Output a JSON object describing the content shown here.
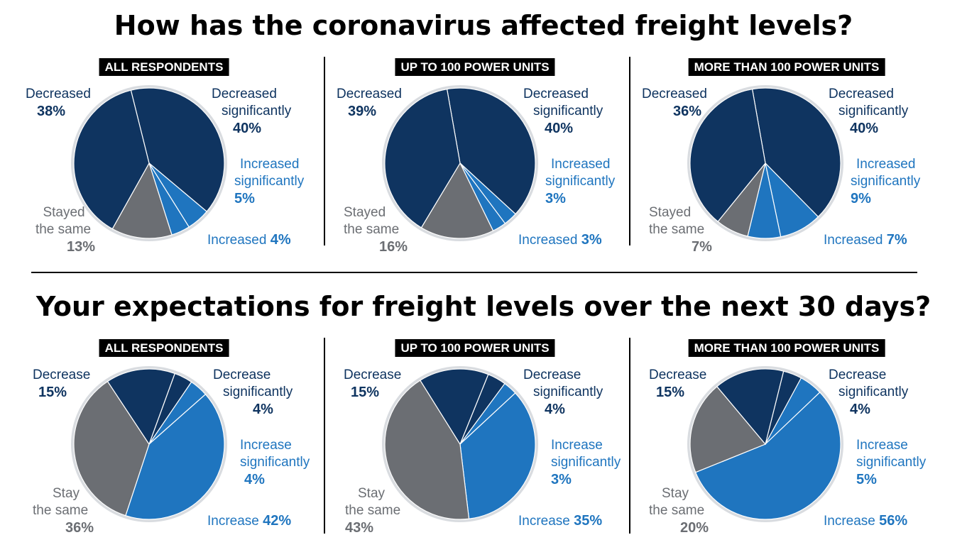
{
  "titles": {
    "top": "How has the coronavirus affected freight levels?",
    "bottom": "Your expectations for freight levels over the next 30 days?"
  },
  "colors": {
    "dark": "#0f3460",
    "blue": "#1f75bf",
    "gray": "#6b6e73"
  },
  "chart_data": [
    {
      "type": "pie",
      "title": "ALL RESPONDENTS",
      "slices": [
        {
          "label": "Decreased significantly",
          "value": 40,
          "color": "#0f3460"
        },
        {
          "label": "Increased significantly",
          "value": 5,
          "color": "#1f75bf"
        },
        {
          "label": "Increased",
          "value": 4,
          "color": "#1f75bf"
        },
        {
          "label": "Stayed the same",
          "value": 13,
          "color": "#6b6e73"
        },
        {
          "label": "Decreased",
          "value": 38,
          "color": "#0f3460"
        }
      ]
    },
    {
      "type": "pie",
      "title": "UP TO 100 POWER UNITS",
      "slices": [
        {
          "label": "Decreased significantly",
          "value": 40,
          "color": "#0f3460"
        },
        {
          "label": "Increased significantly",
          "value": 3,
          "color": "#1f75bf"
        },
        {
          "label": "Increased",
          "value": 3,
          "color": "#1f75bf"
        },
        {
          "label": "Stayed the same",
          "value": 16,
          "color": "#6b6e73"
        },
        {
          "label": "Decreased",
          "value": 39,
          "color": "#0f3460"
        }
      ]
    },
    {
      "type": "pie",
      "title": "MORE THAN 100 POWER UNITS",
      "slices": [
        {
          "label": "Decreased significantly",
          "value": 40,
          "color": "#0f3460"
        },
        {
          "label": "Increased significantly",
          "value": 9,
          "color": "#1f75bf"
        },
        {
          "label": "Increased",
          "value": 7,
          "color": "#1f75bf"
        },
        {
          "label": "Stayed the same",
          "value": 7,
          "color": "#6b6e73"
        },
        {
          "label": "Decreased",
          "value": 36,
          "color": "#0f3460"
        }
      ]
    },
    {
      "type": "pie",
      "title": "ALL RESPONDENTS",
      "slices": [
        {
          "label": "Decrease significantly",
          "value": 4,
          "color": "#0f3460"
        },
        {
          "label": "Increase significantly",
          "value": 4,
          "color": "#1f75bf"
        },
        {
          "label": "Increase",
          "value": 42,
          "color": "#1f75bf"
        },
        {
          "label": "Stay the same",
          "value": 36,
          "color": "#6b6e73"
        },
        {
          "label": "Decrease",
          "value": 15,
          "color": "#0f3460"
        }
      ]
    },
    {
      "type": "pie",
      "title": "UP TO 100 POWER UNITS",
      "slices": [
        {
          "label": "Decrease significantly",
          "value": 4,
          "color": "#0f3460"
        },
        {
          "label": "Increase significantly",
          "value": 3,
          "color": "#1f75bf"
        },
        {
          "label": "Increase",
          "value": 35,
          "color": "#1f75bf"
        },
        {
          "label": "Stay the same",
          "value": 43,
          "color": "#6b6e73"
        },
        {
          "label": "Decrease",
          "value": 15,
          "color": "#0f3460"
        }
      ]
    },
    {
      "type": "pie",
      "title": "MORE THAN 100 POWER UNITS",
      "slices": [
        {
          "label": "Decrease significantly",
          "value": 4,
          "color": "#0f3460"
        },
        {
          "label": "Increase significantly",
          "value": 5,
          "color": "#1f75bf"
        },
        {
          "label": "Increase",
          "value": 56,
          "color": "#1f75bf"
        },
        {
          "label": "Stay the same",
          "value": 20,
          "color": "#6b6e73"
        },
        {
          "label": "Decrease",
          "value": 15,
          "color": "#0f3460"
        }
      ]
    }
  ],
  "labels": {
    "top": {
      "decreased_a": "Decreased",
      "decreased_sig_a": "Decreased",
      "decreased_sig_b": "significantly",
      "increased_sig_a": "Increased",
      "increased_sig_b": "significantly",
      "increased": "Increased",
      "stayed_a": "Stayed",
      "stayed_b": "the same"
    },
    "bottom": {
      "decrease_a": "Decrease",
      "decrease_sig_a": "Decrease",
      "decrease_sig_b": "significantly",
      "increase_sig_a": "Increase",
      "increase_sig_b": "significantly",
      "increase": "Increase",
      "stay_a": "Stay",
      "stay_b": "the same"
    }
  },
  "pcts": [
    {
      "dsig": "40%",
      "isig": "5%",
      "inc": "4%",
      "same": "13%",
      "dec": "38%"
    },
    {
      "dsig": "40%",
      "isig": "3%",
      "inc": "3%",
      "same": "16%",
      "dec": "39%"
    },
    {
      "dsig": "40%",
      "isig": "9%",
      "inc": "7%",
      "same": "7%",
      "dec": "36%"
    },
    {
      "dsig": "4%",
      "isig": "4%",
      "inc": "42%",
      "same": "36%",
      "dec": "15%"
    },
    {
      "dsig": "4%",
      "isig": "3%",
      "inc": "35%",
      "same": "43%",
      "dec": "15%"
    },
    {
      "dsig": "4%",
      "isig": "5%",
      "inc": "56%",
      "same": "20%",
      "dec": "15%"
    }
  ]
}
